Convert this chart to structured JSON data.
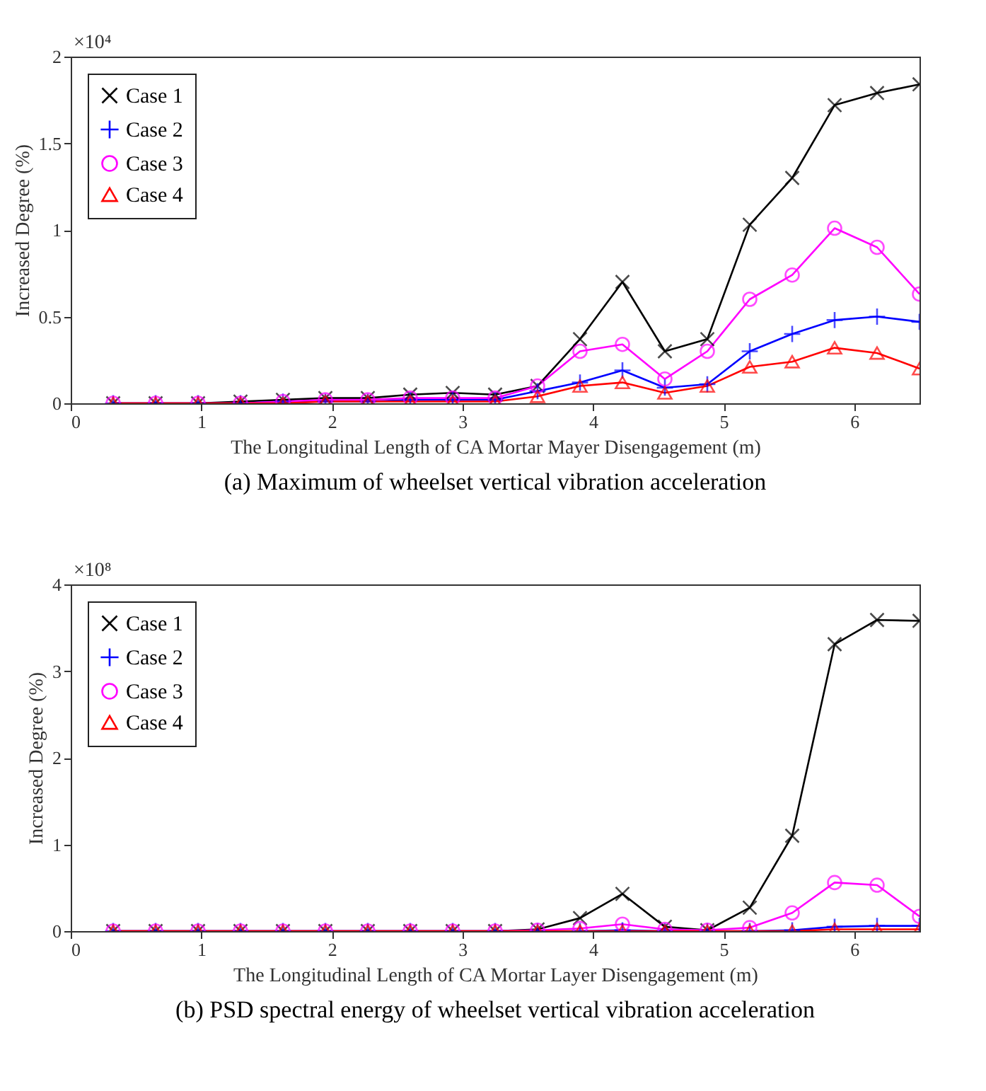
{
  "chart_data": [
    {
      "type": "line",
      "xlabel": "The Longitudinal Length of CA Mortar Mayer Disengagement (m)",
      "ylabel": "Increased Degree (%)",
      "annotations": [
        "×10⁴",
        "(a) Maximum of wheelset vertical vibration acceleration"
      ],
      "x": [
        0.325,
        0.65,
        0.975,
        1.3,
        1.625,
        1.95,
        2.275,
        2.6,
        2.925,
        3.25,
        3.575,
        3.9,
        4.225,
        4.55,
        4.875,
        5.2,
        5.525,
        5.85,
        6.175,
        6.5
      ],
      "xlim": [
        0,
        6.5
      ],
      "xticks": [
        0,
        1,
        2,
        3,
        4,
        5,
        6
      ],
      "ylim": [
        0,
        2
      ],
      "yticks": [
        0,
        0.5,
        1,
        1.5,
        2
      ],
      "legend": "top left",
      "series": [
        {
          "name": "Case 1",
          "color": "#000000",
          "marker": "cross",
          "values": [
            0,
            0,
            0,
            0.01,
            0.02,
            0.03,
            0.03,
            0.05,
            0.06,
            0.05,
            0.1,
            0.37,
            0.7,
            0.3,
            0.37,
            1.03,
            1.3,
            1.72,
            1.79,
            1.84
          ]
        },
        {
          "name": "Case 2",
          "color": "#0000ff",
          "marker": "plus",
          "values": [
            0,
            0,
            0,
            0,
            0.01,
            0.01,
            0.01,
            0.02,
            0.02,
            0.02,
            0.07,
            0.12,
            0.19,
            0.09,
            0.11,
            0.3,
            0.4,
            0.48,
            0.5,
            0.47
          ]
        },
        {
          "name": "Case 3",
          "color": "#ff00ff",
          "marker": "circle",
          "values": [
            0,
            0,
            0,
            0,
            0.01,
            0.02,
            0.02,
            0.03,
            0.03,
            0.03,
            0.1,
            0.3,
            0.34,
            0.14,
            0.3,
            0.6,
            0.74,
            1.01,
            0.9,
            0.63
          ]
        },
        {
          "name": "Case 4",
          "color": "#ff0000",
          "marker": "triangle",
          "values": [
            0,
            0,
            0,
            0,
            0,
            0.01,
            0.01,
            0.01,
            0.01,
            0.01,
            0.04,
            0.1,
            0.12,
            0.06,
            0.1,
            0.21,
            0.24,
            0.32,
            0.29,
            0.2
          ]
        }
      ]
    },
    {
      "type": "line",
      "xlabel": "The Longitudinal Length of CA Mortar Layer Disengagement (m)",
      "ylabel": "Increased Degree (%)",
      "annotations": [
        "×10⁸",
        "(b) PSD spectral energy of wheelset vertical vibration acceleration"
      ],
      "x": [
        0.325,
        0.65,
        0.975,
        1.3,
        1.625,
        1.95,
        2.275,
        2.6,
        2.925,
        3.25,
        3.575,
        3.9,
        4.225,
        4.55,
        4.875,
        5.2,
        5.525,
        5.85,
        6.175,
        6.5
      ],
      "xlim": [
        0,
        6.5
      ],
      "xticks": [
        0,
        1,
        2,
        3,
        4,
        5,
        6
      ],
      "ylim": [
        0,
        4
      ],
      "yticks": [
        0,
        1,
        2,
        3,
        4
      ],
      "legend": "top left",
      "series": [
        {
          "name": "Case 1",
          "color": "#000000",
          "marker": "cross",
          "values": [
            0,
            0,
            0,
            0,
            0,
            0,
            0,
            0,
            0,
            0,
            0.02,
            0.15,
            0.43,
            0.05,
            0.01,
            0.27,
            1.1,
            3.31,
            3.59,
            3.58
          ]
        },
        {
          "name": "Case 2",
          "color": "#0000ff",
          "marker": "plus",
          "values": [
            0,
            0,
            0,
            0,
            0,
            0,
            0,
            0,
            0,
            0,
            0,
            0,
            0.01,
            0,
            0,
            0,
            0.01,
            0.05,
            0.06,
            0.06
          ]
        },
        {
          "name": "Case 3",
          "color": "#ff00ff",
          "marker": "circle",
          "values": [
            0,
            0,
            0,
            0,
            0,
            0,
            0,
            0,
            0,
            0,
            0.01,
            0.03,
            0.08,
            0.02,
            0.01,
            0.04,
            0.21,
            0.56,
            0.53,
            0.17
          ]
        },
        {
          "name": "Case 4",
          "color": "#ff0000",
          "marker": "triangle",
          "values": [
            0,
            0,
            0,
            0,
            0,
            0,
            0,
            0,
            0,
            0,
            0,
            0,
            0,
            0,
            0,
            0,
            0,
            0.02,
            0.02,
            0.02
          ]
        }
      ]
    }
  ]
}
